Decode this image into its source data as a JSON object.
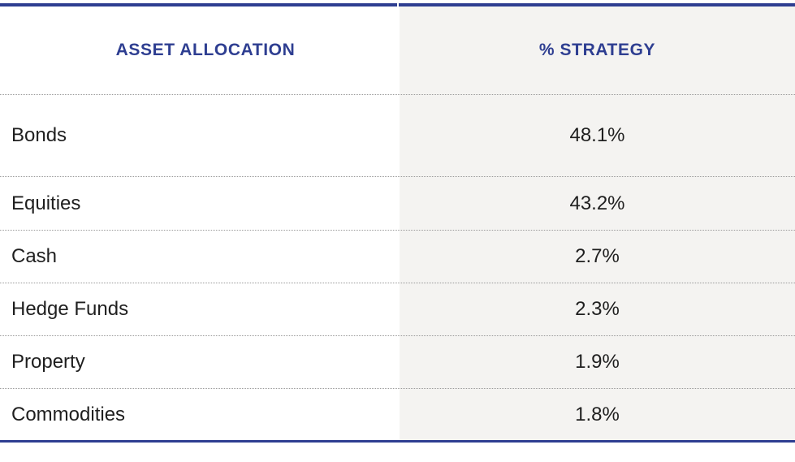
{
  "colors": {
    "accent": "#2e3e91",
    "shaded_column": "#f4f3f1",
    "text": "#1f1f1f",
    "divider": "#9a9a9a"
  },
  "chart_data": {
    "type": "table",
    "columns": [
      "ASSET ALLOCATION",
      "% STRATEGY"
    ],
    "rows": [
      {
        "label": "Bonds",
        "value": "48.1%"
      },
      {
        "label": "Equities",
        "value": "43.2%"
      },
      {
        "label": "Cash",
        "value": "2.7%"
      },
      {
        "label": "Hedge Funds",
        "value": "2.3%"
      },
      {
        "label": "Property",
        "value": "1.9%"
      },
      {
        "label": "Commodities",
        "value": "1.8%"
      }
    ],
    "values": [
      48.1,
      43.2,
      2.7,
      2.3,
      1.9,
      1.8
    ],
    "unit": "%"
  }
}
